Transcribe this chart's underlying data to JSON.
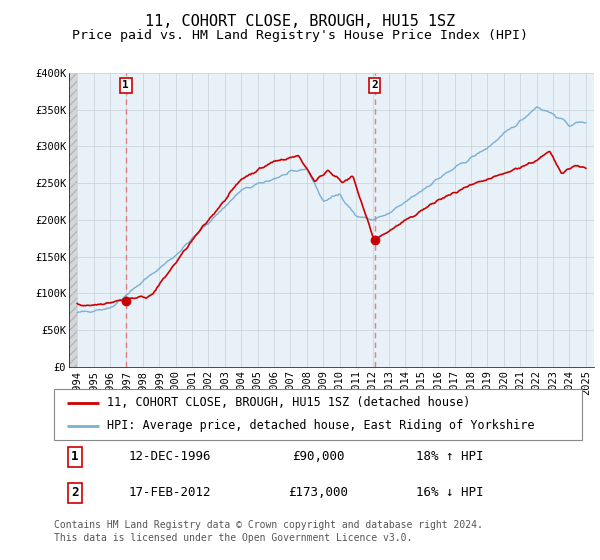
{
  "title": "11, COHORT CLOSE, BROUGH, HU15 1SZ",
  "subtitle": "Price paid vs. HM Land Registry's House Price Index (HPI)",
  "ylim": [
    0,
    400000
  ],
  "yticks": [
    0,
    50000,
    100000,
    150000,
    200000,
    250000,
    300000,
    350000,
    400000
  ],
  "ytick_labels": [
    "£0",
    "£50K",
    "£100K",
    "£150K",
    "£200K",
    "£250K",
    "£300K",
    "£350K",
    "£400K"
  ],
  "xlim_start": 1993.5,
  "xlim_end": 2025.5,
  "transaction1_date": 1996.96,
  "transaction1_price": 90000,
  "transaction2_date": 2012.13,
  "transaction2_price": 173000,
  "red_line_color": "#cc0000",
  "blue_line_color": "#7ab0d4",
  "dashed_line_color": "#e08080",
  "marker_color": "#cc0000",
  "bg_plot_color": "#e8f0f8",
  "bg_hatch_color": "#d8d8d8",
  "grid_color": "#c8d0d8",
  "legend_label1": "11, COHORT CLOSE, BROUGH, HU15 1SZ (detached house)",
  "legend_label2": "HPI: Average price, detached house, East Riding of Yorkshire",
  "table_row1": [
    "1",
    "12-DEC-1996",
    "£90,000",
    "18% ↑ HPI"
  ],
  "table_row2": [
    "2",
    "17-FEB-2012",
    "£173,000",
    "16% ↓ HPI"
  ],
  "footer_text": "Contains HM Land Registry data © Crown copyright and database right 2024.\nThis data is licensed under the Open Government Licence v3.0.",
  "title_fontsize": 11,
  "subtitle_fontsize": 9.5,
  "tick_fontsize": 7.5,
  "legend_fontsize": 8.5,
  "table_fontsize": 9,
  "footer_fontsize": 7
}
